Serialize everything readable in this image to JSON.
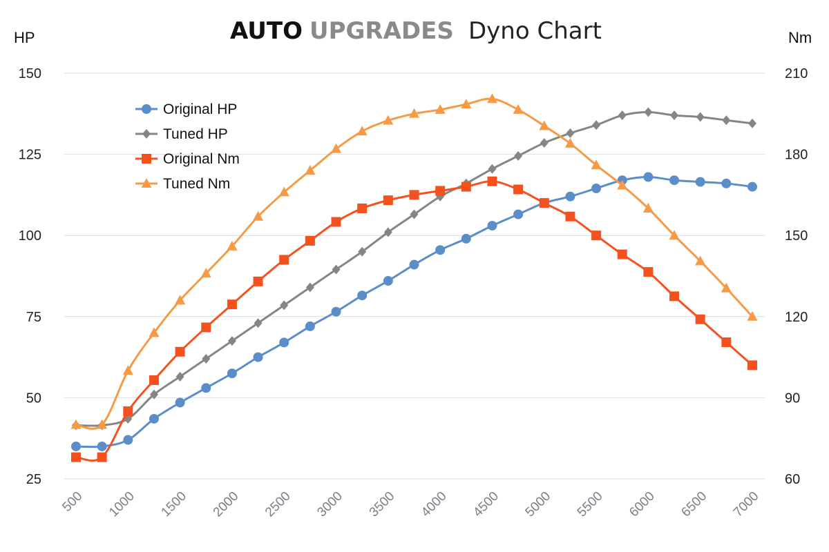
{
  "header": {
    "brand_word_1": "AUTO",
    "brand_word_2": "UPGRADES",
    "subtitle": "Dyno Chart"
  },
  "chart_data": {
    "type": "line",
    "title": "AUTO UPGRADES Dyno Chart",
    "x": [
      500,
      750,
      1000,
      1250,
      1500,
      1750,
      2000,
      2250,
      2500,
      2750,
      3000,
      3250,
      3500,
      3750,
      4000,
      4250,
      4500,
      4750,
      5000,
      5250,
      5500,
      5750,
      6000,
      6250,
      6500,
      6750,
      7000
    ],
    "x_tick_labels": [
      "500",
      "1000",
      "1500",
      "2000",
      "2500",
      "3000",
      "3500",
      "4000",
      "4500",
      "5000",
      "5500",
      "6000",
      "6500",
      "7000"
    ],
    "xlim": [
      500,
      7000
    ],
    "left_axis": {
      "unit": "HP",
      "range": [
        25,
        150
      ],
      "ticks": [
        "25",
        "50",
        "75",
        "100",
        "125",
        "150"
      ]
    },
    "right_axis": {
      "unit": "Nm",
      "range": [
        60,
        210
      ],
      "ticks": [
        "60",
        "90",
        "120",
        "150",
        "180",
        "210"
      ]
    },
    "grid": true,
    "legend_position": "top-left",
    "series": [
      {
        "name": "Original HP",
        "axis": "left",
        "color": "#5b8dc9",
        "marker": "circle",
        "values": [
          35,
          35,
          37,
          43.5,
          48.5,
          53,
          57.5,
          62.5,
          67,
          72,
          76.5,
          81.5,
          86,
          91,
          95.5,
          99,
          103,
          106.5,
          110,
          112,
          114.5,
          117,
          118,
          117,
          116.5,
          116,
          115
        ]
      },
      {
        "name": "Tuned HP",
        "axis": "left",
        "color": "#858585",
        "marker": "diamond",
        "values": [
          41.5,
          41.5,
          43.5,
          51,
          56.5,
          62,
          67.5,
          73,
          78.5,
          84,
          89.5,
          95,
          101,
          106.5,
          112,
          116,
          120.5,
          124.5,
          128.5,
          131.5,
          134,
          137,
          138,
          137,
          136.5,
          135.5,
          134.5
        ]
      },
      {
        "name": "Original Nm",
        "axis": "right",
        "color": "#f4511e",
        "marker": "square",
        "values": [
          68,
          68,
          85,
          96.5,
          107,
          116,
          124.5,
          133,
          141,
          148,
          155,
          160,
          163,
          165,
          166.5,
          168,
          170,
          167,
          162,
          157,
          150,
          143,
          136.5,
          127.5,
          119,
          110.5,
          102
        ]
      },
      {
        "name": "Tuned Nm",
        "axis": "right",
        "color": "#f79a46",
        "marker": "triangle",
        "values": [
          80,
          80,
          100,
          114,
          126,
          136,
          146,
          157,
          166,
          174,
          182,
          188.5,
          192.5,
          195,
          196.5,
          198.5,
          200.5,
          196.5,
          190.5,
          184,
          176,
          168.5,
          160,
          150,
          140.5,
          130.5,
          120
        ]
      }
    ]
  }
}
